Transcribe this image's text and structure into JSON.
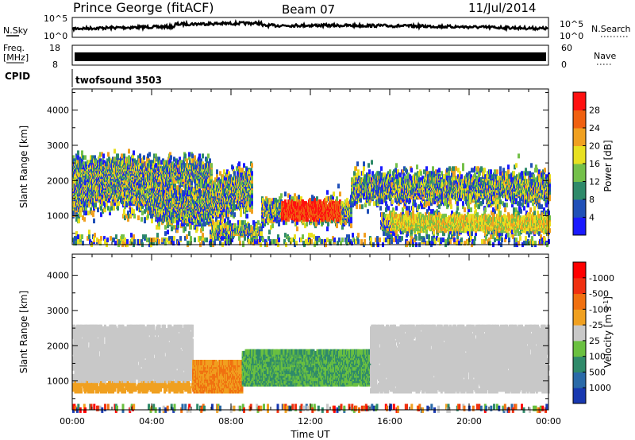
{
  "header": {
    "title": "Prince George (fitACF)",
    "beam": "Beam 07",
    "date": "11/Jul/2014"
  },
  "nsky_panel": {
    "left_label": "N.Sky",
    "right_label": "N.Search",
    "tick_top": "10^5",
    "tick_bottom": "10^0"
  },
  "freq_panel": {
    "left_label_1": "Freq.",
    "left_label_2": "[MHz]",
    "tick_top": "18",
    "tick_bottom": "8",
    "right_label": "Nave",
    "right_tick_top": "60",
    "right_tick_bottom": "0"
  },
  "cpid": {
    "label": "CPID",
    "value": "twofsound 3503"
  },
  "chart_data": [
    {
      "type": "heatmap",
      "name": "power",
      "ylabel": "Slant Range [km]",
      "xlabel": "Time UT",
      "ylim": [
        180,
        4600
      ],
      "xlim": [
        0,
        24
      ],
      "yticks": [
        1000,
        2000,
        3000,
        4000
      ],
      "colorbar": {
        "label": "Power [dB]",
        "ticks": [
          "4",
          "8",
          "12",
          "16",
          "20",
          "24",
          "28"
        ],
        "colors": [
          "#1a1aff",
          "#2050b8",
          "#2f8a6a",
          "#74c04a",
          "#e8e020",
          "#f0a020",
          "#f06010",
          "#ff1010"
        ]
      }
    },
    {
      "type": "heatmap",
      "name": "velocity",
      "ylabel": "Slant Range [km]",
      "xlabel": "Time UT",
      "ylim": [
        180,
        4600
      ],
      "xlim": [
        0,
        24
      ],
      "yticks": [
        1000,
        2000,
        3000,
        4000
      ],
      "xticks": [
        "00:00",
        "04:00",
        "08:00",
        "12:00",
        "16:00",
        "20:00",
        "00:00"
      ],
      "colorbar": {
        "label": "Velocity [m s^-1]",
        "ticks": [
          "1000",
          "500",
          "100",
          "25",
          "-25",
          "-100",
          "-500",
          "-1000"
        ],
        "colors": [
          "#1838b0",
          "#2a6aa8",
          "#2f8a6a",
          "#6ac040",
          "#c8c8c8",
          "#f0a020",
          "#f07010",
          "#f03010",
          "#ff0000"
        ]
      }
    }
  ]
}
